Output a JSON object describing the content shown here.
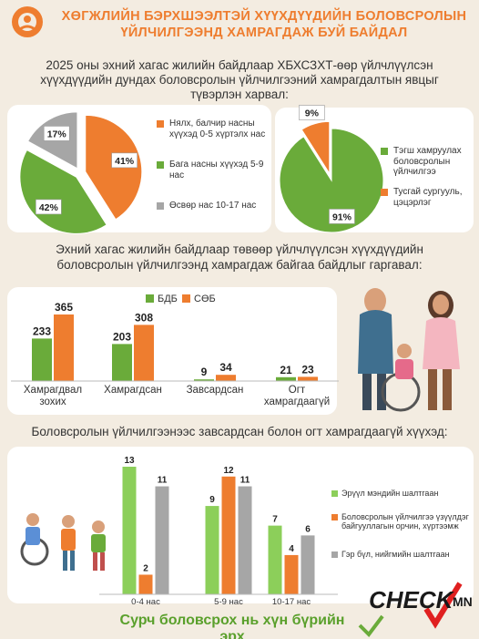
{
  "header": {
    "title_lines": [
      "ХӨГЖЛИЙН БЭРХШЭЭЛТЭЙ ХҮҮХДҮҮДИЙН БОЛОВСРОЛЫН",
      "ҮЙЛЧИЛГЭЭНД ХАМРАГДАЖ БУЙ БАЙДАЛ"
    ]
  },
  "intro_lines": [
    "2025 оны эхний хагас жилийн байдлаар ХБХСЗХТ-өөр үйлчлүүлсэн",
    "хүүхдүүдийн дундах боловсролын үйлчилгээний хамрагдалтын явцыг",
    "түвэрлэн харвал:"
  ],
  "section2_lines": [
    "Эхний хагас жилийн байдлаар төвөөр үйлчлүүлсэн хүүхдүүдийн",
    "боловсролын үйлчилгээнд хамрагдаж байгаа байдлыг гаргавал:"
  ],
  "section3": "Боловсролын үйлчилгээнээс завсардсан болон огт хамрагдаагүй хүүхэд:",
  "chart_data": [
    {
      "type": "pie",
      "categories": [
        "Нялх, балчир насны хүүхэд 0-5 хүртэлх нас",
        "Бага насны хүүхэд 5-9 нас",
        "Өсвөр нас 10-17 нас"
      ],
      "values": [
        41,
        42,
        17
      ],
      "value_labels": [
        "41%",
        "42%",
        "17%"
      ],
      "colors": [
        "#ee7d2f",
        "#6aab3a",
        "#a6a6a6"
      ],
      "legend": "right"
    },
    {
      "type": "pie",
      "categories": [
        "Тэгш хамруулах боловсролын үйлчилгээ",
        "Тусгай сургууль, цэцэрлэг"
      ],
      "values": [
        91,
        9
      ],
      "value_labels": [
        "91%",
        "9%"
      ],
      "colors": [
        "#6aab3a",
        "#ee7d2f"
      ],
      "legend": "right"
    },
    {
      "type": "bar",
      "categories": [
        "Хамрагдвал зохих",
        "Хамрагдсан",
        "Завсардсан",
        "Огт хамрагдаагүй"
      ],
      "series": [
        {
          "name": "БДБ",
          "color": "#6aab3a",
          "values": [
            233,
            203,
            9,
            21
          ]
        },
        {
          "name": "СӨБ",
          "color": "#ee7d2f",
          "values": [
            365,
            308,
            34,
            23
          ]
        }
      ],
      "legend": "top"
    },
    {
      "type": "bar",
      "categories": [
        "0-4 нас",
        "5-9 нас",
        "10-17 нас"
      ],
      "series": [
        {
          "name": "Эрүүл мэндийн шалтгаан",
          "color": "#8ccf5a",
          "values": [
            13,
            9,
            7
          ]
        },
        {
          "name": "Боловсролын үйлчилгээ үзүүлдэг байгууллагын орчин, хүртээмж",
          "color": "#ee7d2f",
          "values": [
            2,
            12,
            4
          ]
        },
        {
          "name": "Гэр бүл, нийгмийн шалтгаан",
          "color": "#a6a6a6",
          "values": [
            11,
            11,
            6
          ]
        }
      ],
      "legend": "right"
    }
  ],
  "footer": {
    "slogan": "Сурч боловсрох нь хүн бүрийн эрх",
    "brand": "CHECK",
    "brand_suffix": "MN"
  }
}
